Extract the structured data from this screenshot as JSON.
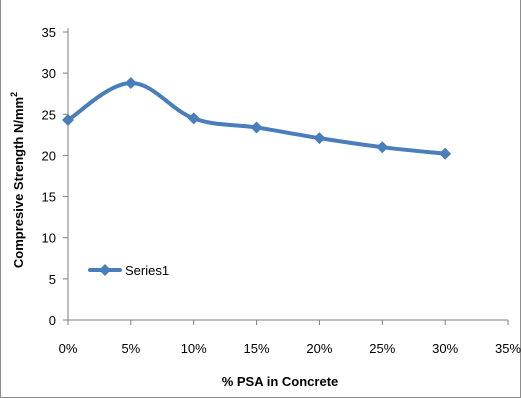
{
  "chart_data": {
    "type": "line",
    "x": [
      "0%",
      "5%",
      "10%",
      "15%",
      "20%",
      "25%",
      "30%"
    ],
    "x_ticks": [
      "0%",
      "5%",
      "10%",
      "15%",
      "20%",
      "25%",
      "30%",
      "35%"
    ],
    "series": [
      {
        "name": "Series1",
        "values": [
          24.3,
          28.8,
          24.5,
          23.4,
          22.1,
          21.0,
          20.2
        ]
      }
    ],
    "xlabel": "% PSA in Concrete",
    "ylabel_main": "Compresive Strength N/mm",
    "ylabel_sup": "2",
    "ylim": [
      0,
      35
    ],
    "y_ticks": [
      "0",
      "5",
      "10",
      "15",
      "20",
      "25",
      "30",
      "35"
    ],
    "grid": false,
    "legend_placement": "left-lower",
    "line_color": "#4a7ebb",
    "smooth": true
  }
}
